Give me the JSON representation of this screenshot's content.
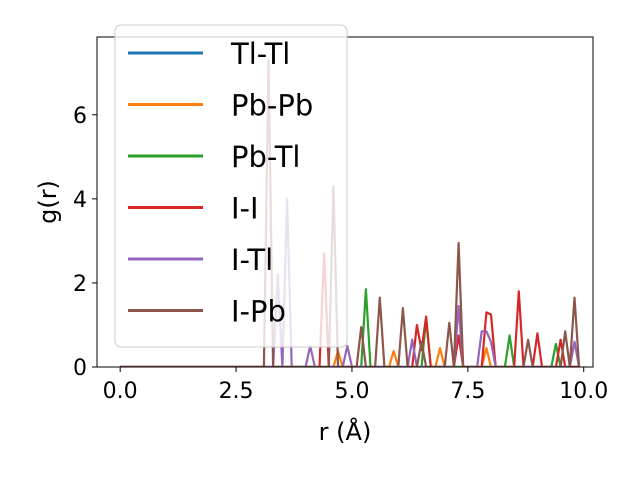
{
  "chart_data": {
    "type": "line",
    "title": "",
    "xlabel": "r (Å)",
    "ylabel": "g(r)",
    "xlim": [
      -0.5,
      10.2
    ],
    "ylim": [
      0,
      7.85
    ],
    "xticks": [
      0.0,
      2.5,
      5.0,
      7.5,
      10.0
    ],
    "xtick_labels": [
      "0.0",
      "2.5",
      "5.0",
      "7.5",
      "10.0"
    ],
    "yticks": [
      0,
      2,
      4,
      6
    ],
    "ytick_labels": [
      "0",
      "2",
      "4",
      "6"
    ],
    "legend_position": "upper-left",
    "series": [
      {
        "name": "Tl-Tl",
        "color": "#1f77b4",
        "x": [
          0.0,
          9.9
        ],
        "y": [
          0.0,
          0.0
        ]
      },
      {
        "name": "Pb-Pb",
        "color": "#ff7f0e",
        "x": [
          0.0,
          4.6,
          4.7,
          4.8,
          5.8,
          5.9,
          6.0,
          6.8,
          6.9,
          7.0,
          7.8,
          7.9,
          8.0,
          9.9
        ],
        "y": [
          0.0,
          0.0,
          0.38,
          0.0,
          0.0,
          0.38,
          0.0,
          0.0,
          0.45,
          0.0,
          0.0,
          0.45,
          0.0,
          0.0
        ]
      },
      {
        "name": "Pb-Tl",
        "color": "#2ca02c",
        "x": [
          0.0,
          5.2,
          5.3,
          5.4,
          6.5,
          6.6,
          6.7,
          8.3,
          8.4,
          8.5,
          9.3,
          9.4,
          9.5,
          9.9
        ],
        "y": [
          0.0,
          0.0,
          1.85,
          0.0,
          0.0,
          1.15,
          0.0,
          0.0,
          0.75,
          0.0,
          0.0,
          0.55,
          0.0,
          0.0
        ]
      },
      {
        "name": "I-I",
        "color": "#d62728",
        "x": [
          0.0,
          4.3,
          4.4,
          4.5,
          6.3,
          6.4,
          6.5,
          6.6,
          6.7,
          7.2,
          7.3,
          7.4,
          7.8,
          7.9,
          8.0,
          8.1,
          8.5,
          8.6,
          8.7,
          8.9,
          9.0,
          9.1,
          9.4,
          9.5,
          9.6,
          9.9
        ],
        "y": [
          0.0,
          0.0,
          2.7,
          0.0,
          0.0,
          1.0,
          0.4,
          1.2,
          0.0,
          0.0,
          0.75,
          0.0,
          0.0,
          1.3,
          1.25,
          0.0,
          0.0,
          1.8,
          0.0,
          0.0,
          0.8,
          0.0,
          0.0,
          0.65,
          0.0,
          0.0
        ]
      },
      {
        "name": "I-Tl",
        "color": "#9467bd",
        "x": [
          0.0,
          3.3,
          3.4,
          3.5,
          3.6,
          3.7,
          4.0,
          4.1,
          4.2,
          4.8,
          4.9,
          5.0,
          6.2,
          6.3,
          6.4,
          7.2,
          7.3,
          7.4,
          7.7,
          7.8,
          7.9,
          8.0,
          8.1,
          9.7,
          9.8,
          9.9
        ],
        "y": [
          0.0,
          0.0,
          2.2,
          0.0,
          4.0,
          0.0,
          0.0,
          0.5,
          0.0,
          0.0,
          0.5,
          0.0,
          0.0,
          0.65,
          0.0,
          0.0,
          1.45,
          0.0,
          0.0,
          0.85,
          0.85,
          0.6,
          0.0,
          0.0,
          0.6,
          0.0
        ]
      },
      {
        "name": "I-Pb",
        "color": "#8c564b",
        "x": [
          0.0,
          3.1,
          3.2,
          3.3,
          4.5,
          4.6,
          4.7,
          5.1,
          5.2,
          5.3,
          5.5,
          5.6,
          5.7,
          6.0,
          6.1,
          6.2,
          6.4,
          6.5,
          6.6,
          7.0,
          7.1,
          7.2,
          7.3,
          7.4,
          8.7,
          8.8,
          8.9,
          9.5,
          9.6,
          9.7,
          9.8,
          9.9
        ],
        "y": [
          0.0,
          0.0,
          7.3,
          0.0,
          0.0,
          4.3,
          0.0,
          0.0,
          0.95,
          0.0,
          0.0,
          1.65,
          0.0,
          0.0,
          1.4,
          0.0,
          0.0,
          0.6,
          0.0,
          0.0,
          1.05,
          0.0,
          2.95,
          0.0,
          0.0,
          0.65,
          0.0,
          0.0,
          0.85,
          0.0,
          1.65,
          0.0
        ]
      }
    ]
  }
}
